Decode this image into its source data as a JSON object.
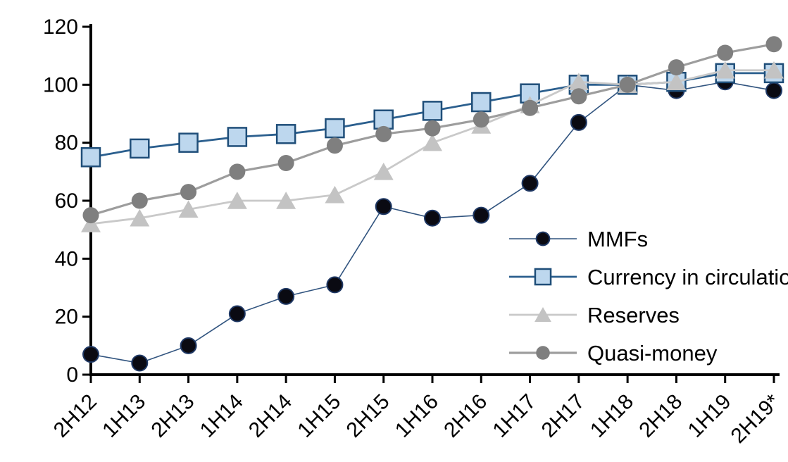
{
  "chart_data": {
    "type": "line",
    "title": "",
    "xlabel": "",
    "ylabel": "",
    "categories": [
      "2H12",
      "1H13",
      "2H13",
      "1H14",
      "2H14",
      "1H15",
      "2H15",
      "1H16",
      "2H16",
      "1H17",
      "2H17",
      "1H18",
      "2H18",
      "1H19",
      "2H19*"
    ],
    "series": [
      {
        "name": "MMFs",
        "marker": "circle",
        "line_color": "#31547F",
        "line_width": 1.6,
        "marker_fill": "#0A0A12",
        "marker_stroke": "#1F3864",
        "marker_size": 22,
        "values": [
          7,
          4,
          10,
          21,
          27,
          31,
          58,
          54,
          55,
          66,
          87,
          100,
          98,
          101,
          98
        ]
      },
      {
        "name": "Currency in circulation",
        "marker": "square",
        "line_color": "#2B5F8E",
        "line_width": 2.8,
        "marker_fill": "#BDD7EE",
        "marker_stroke": "#1F4E79",
        "marker_size": 26,
        "values": [
          75,
          78,
          80,
          82,
          83,
          85,
          88,
          91,
          94,
          97,
          100,
          100,
          101,
          104,
          104
        ]
      },
      {
        "name": "Reserves",
        "marker": "triangle",
        "line_color": "#C9C9C9",
        "line_width": 2.8,
        "marker_fill": "#C3C3C3",
        "marker_stroke": "#C3C3C3",
        "marker_size": 28,
        "values": [
          52,
          54,
          57,
          60,
          60,
          62,
          70,
          80,
          86,
          93,
          101,
          100,
          101,
          105,
          105
        ]
      },
      {
        "name": "Quasi-money",
        "marker": "circle",
        "line_color": "#9D9D9D",
        "line_width": 3.2,
        "marker_fill": "#7F7F7F",
        "marker_stroke": "#7F7F7F",
        "marker_size": 23,
        "values": [
          55,
          60,
          63,
          70,
          73,
          79,
          83,
          85,
          88,
          92,
          96,
          100,
          106,
          111,
          114
        ]
      }
    ],
    "ylim": [
      0,
      120
    ],
    "yticks": [
      0,
      20,
      40,
      60,
      80,
      100,
      120
    ],
    "grid": false,
    "legend_position": "inside-right",
    "axis_color": "#000000",
    "background_color": "#FFFFFF"
  }
}
